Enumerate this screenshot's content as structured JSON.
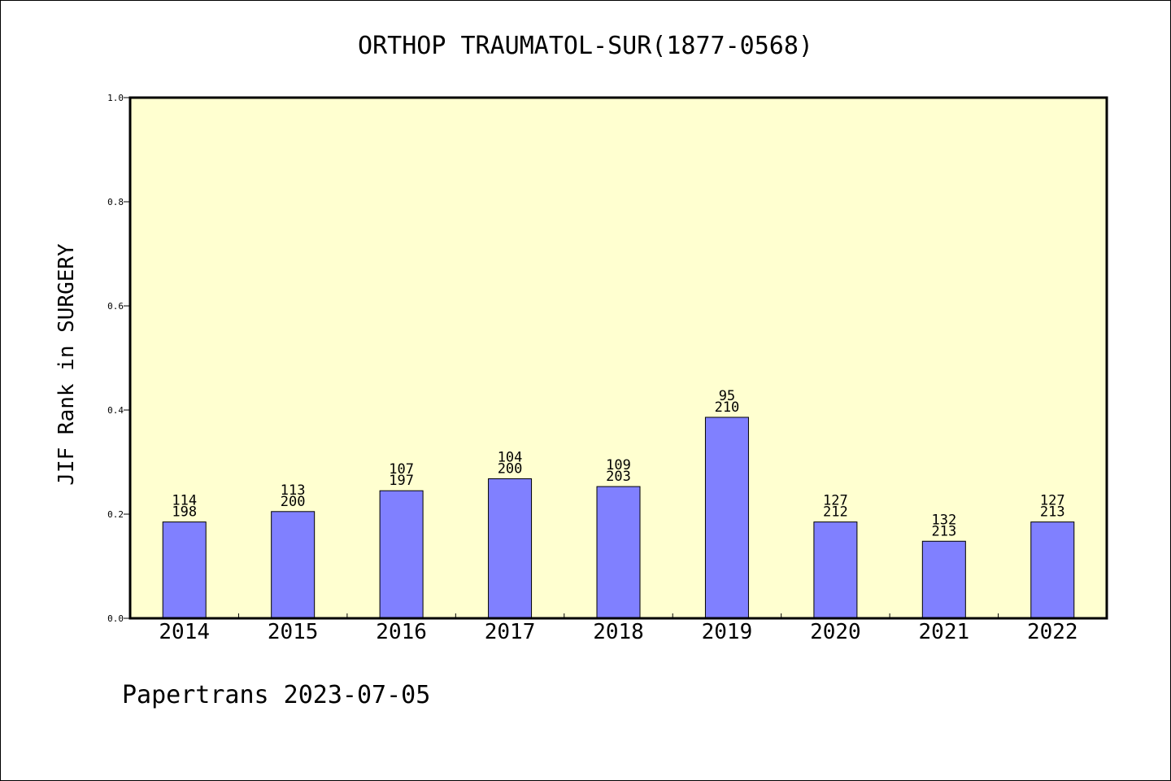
{
  "chart_data": {
    "type": "bar",
    "title": "ORTHOP TRAUMATOL-SUR(1877-0568)",
    "xlabel": "",
    "ylabel": "JIF Rank in SURGERY",
    "ylim": [
      0,
      1.0
    ],
    "yticks": [
      "0.0",
      "0.2",
      "0.4",
      "0.6",
      "0.8",
      "1.0"
    ],
    "categories": [
      "2014",
      "2015",
      "2016",
      "2017",
      "2018",
      "2019",
      "2020",
      "2021",
      "2022"
    ],
    "values": [
      0.185,
      0.205,
      0.245,
      0.268,
      0.253,
      0.386,
      0.185,
      0.148,
      0.185
    ],
    "labels_top": [
      "114",
      "113",
      "107",
      "104",
      "109",
      "95",
      "127",
      "132",
      "127"
    ],
    "labels_bottom": [
      "198",
      "200",
      "197",
      "200",
      "203",
      "210",
      "212",
      "213",
      "213"
    ],
    "grid": false,
    "colors": {
      "plot_bg": "#ffffd0",
      "bar": "#8080ff",
      "bar_stroke": "#000000"
    }
  },
  "footer": "Papertrans 2023-07-05"
}
